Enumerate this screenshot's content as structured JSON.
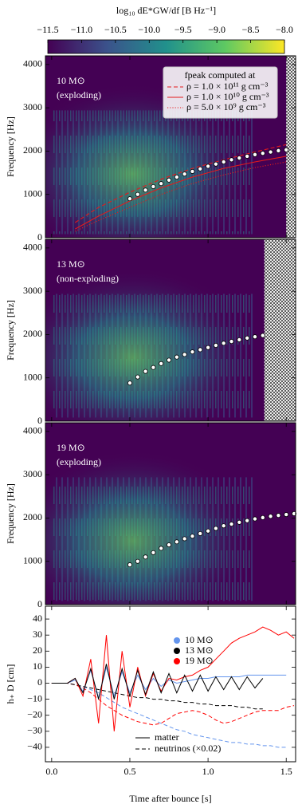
{
  "chart_data": [
    {
      "type": "colorbar",
      "label": "log₁₀ dE*GW/df [B Hz⁻¹]",
      "colormap": "viridis",
      "xlim": [
        -11.5,
        -8.0
      ],
      "xticks": [
        {
          "value": -11.5,
          "label": "−11.5"
        },
        {
          "value": -11.0,
          "label": "−11.0"
        },
        {
          "value": -10.5,
          "label": "−10.5"
        },
        {
          "value": -10.0,
          "label": "−10.0"
        },
        {
          "value": -9.5,
          "label": "−9.5"
        },
        {
          "value": -9.0,
          "label": "−9.0"
        },
        {
          "value": -8.5,
          "label": "−8.5"
        },
        {
          "value": -8.0,
          "label": "−8.0"
        }
      ]
    },
    {
      "type": "spectrogram",
      "annotations": [
        "10 M⊙",
        "(exploding)"
      ],
      "ylabel": "Frequency [Hz]",
      "xlim": [
        -0.04,
        1.56
      ],
      "ylim": [
        0,
        4200
      ],
      "yticks": [
        0,
        1000,
        2000,
        3000,
        4000
      ],
      "hatched_after": 1.5,
      "legend_title": "fpeak computed at",
      "series": [
        {
          "name": "ρ = 1.0 × 10¹¹ g cm⁻³",
          "color": "#e41a1c",
          "linestyle": "dashed",
          "x": [
            0.15,
            0.3,
            0.5,
            0.7,
            0.9,
            1.1,
            1.3,
            1.5
          ],
          "values": [
            350,
            700,
            1050,
            1350,
            1600,
            1800,
            1980,
            2150
          ]
        },
        {
          "name": "ρ = 1.0 × 10¹⁰ g cm⁻³",
          "color": "#e41a1c",
          "linestyle": "solid",
          "x": [
            0.15,
            0.3,
            0.5,
            0.7,
            0.9,
            1.1,
            1.3,
            1.5
          ],
          "values": [
            200,
            500,
            850,
            1150,
            1400,
            1600,
            1750,
            1880
          ]
        },
        {
          "name": "ρ = 5.0 × 10⁹ g cm⁻³",
          "color": "#e41a1c",
          "linestyle": "dotted",
          "x": [
            0.15,
            0.3,
            0.5,
            0.7,
            0.9,
            1.1,
            1.3,
            1.5
          ],
          "values": [
            150,
            400,
            700,
            1000,
            1250,
            1450,
            1620,
            1750
          ]
        }
      ],
      "peaks": {
        "x": [
          0.5,
          0.55,
          0.6,
          0.65,
          0.7,
          0.75,
          0.8,
          0.85,
          0.9,
          0.95,
          1.0,
          1.05,
          1.1,
          1.15,
          1.2,
          1.25,
          1.3,
          1.35,
          1.4,
          1.45,
          1.5
        ],
        "values": [
          900,
          1000,
          1100,
          1180,
          1250,
          1330,
          1400,
          1470,
          1530,
          1590,
          1650,
          1700,
          1750,
          1800,
          1840,
          1880,
          1920,
          1950,
          1980,
          2010,
          2030
        ]
      }
    },
    {
      "type": "spectrogram",
      "annotations": [
        "13 M⊙",
        "(non-exploding)"
      ],
      "ylabel": "Frequency [Hz]",
      "xlim": [
        -0.04,
        1.56
      ],
      "ylim": [
        0,
        4200
      ],
      "yticks": [
        0,
        1000,
        2000,
        3000,
        4000
      ],
      "hatched_after": 1.36,
      "peaks": {
        "x": [
          0.5,
          0.55,
          0.6,
          0.65,
          0.7,
          0.75,
          0.8,
          0.85,
          0.9,
          0.95,
          1.0,
          1.05,
          1.1,
          1.15,
          1.2,
          1.25,
          1.3,
          1.35
        ],
        "values": [
          880,
          1020,
          1150,
          1240,
          1330,
          1410,
          1480,
          1540,
          1600,
          1650,
          1700,
          1750,
          1800,
          1840,
          1880,
          1920,
          1950,
          1980
        ]
      }
    },
    {
      "type": "spectrogram",
      "annotations": [
        "19 M⊙",
        "(exploding)"
      ],
      "ylabel": "Frequency [Hz]",
      "xlim": [
        -0.04,
        1.56
      ],
      "ylim": [
        0,
        4200
      ],
      "yticks": [
        0,
        1000,
        2000,
        3000,
        4000
      ],
      "peaks": {
        "x": [
          0.5,
          0.55,
          0.6,
          0.65,
          0.7,
          0.75,
          0.8,
          0.85,
          0.9,
          0.95,
          1.0,
          1.05,
          1.1,
          1.15,
          1.2,
          1.25,
          1.3,
          1.35,
          1.4,
          1.45,
          1.5,
          1.55
        ],
        "values": [
          920,
          1000,
          1100,
          1200,
          1300,
          1380,
          1450,
          1520,
          1580,
          1640,
          1700,
          1760,
          1820,
          1860,
          1900,
          1940,
          1980,
          2010,
          2040,
          2060,
          2080,
          2100
        ]
      }
    },
    {
      "type": "waveform",
      "xlabel": "Time after bounce [s]",
      "ylabel": "h₊ D [cm]",
      "xlim": [
        -0.04,
        1.56
      ],
      "ylim": [
        -49,
        48
      ],
      "xticks": [
        {
          "value": 0.0,
          "label": "0.0"
        },
        0.5,
        {
          "value": 1.0,
          "label": "1.0"
        },
        1.5
      ],
      "yticks": [
        {
          "value": -40,
          "label": "−40"
        },
        {
          "value": -30,
          "label": "−30"
        },
        {
          "value": -20,
          "label": "−20"
        },
        {
          "value": -10,
          "label": "−10"
        },
        0,
        10,
        20,
        30,
        40
      ],
      "linestyles": [
        {
          "name": "matter",
          "linestyle": "solid"
        },
        {
          "name": "neutrinos (×0.02)",
          "linestyle": "dashed"
        }
      ],
      "models": [
        {
          "name": "10 M⊙",
          "color": "#6495ed",
          "x": [
            0,
            0.05,
            0.1,
            0.15,
            0.2,
            0.25,
            0.3,
            0.35,
            0.4,
            0.45,
            0.5,
            0.55,
            0.6,
            0.65,
            0.7,
            0.75,
            0.8,
            0.85,
            0.9,
            0.95,
            1.0,
            1.05,
            1.1,
            1.15,
            1.2,
            1.25,
            1.3,
            1.35,
            1.4,
            1.45,
            1.5
          ],
          "matter": [
            0,
            0,
            0,
            2,
            -5,
            8,
            -9,
            10,
            -8,
            7,
            -6,
            5,
            -4,
            3,
            -2,
            2,
            0,
            1,
            2,
            3,
            3,
            4,
            4,
            4,
            4,
            5,
            5,
            5,
            5,
            5,
            5
          ],
          "neutrinos": [
            0,
            0,
            0,
            -1,
            -2,
            -4,
            -6,
            -9,
            -12,
            -15,
            -17,
            -19,
            -21,
            -23,
            -25,
            -27,
            -29,
            -30,
            -32,
            -33,
            -34,
            -35,
            -36,
            -37,
            -37,
            -38,
            -38,
            -39,
            -39,
            -40,
            -40
          ]
        },
        {
          "name": "13 M⊙",
          "color": "#000000",
          "x": [
            0,
            0.05,
            0.1,
            0.15,
            0.2,
            0.25,
            0.3,
            0.35,
            0.4,
            0.45,
            0.5,
            0.55,
            0.6,
            0.65,
            0.7,
            0.75,
            0.8,
            0.85,
            0.9,
            0.95,
            1.0,
            1.05,
            1.1,
            1.15,
            1.2,
            1.25,
            1.3,
            1.35
          ],
          "matter": [
            0,
            0,
            0,
            3,
            -6,
            9,
            -10,
            12,
            -10,
            9,
            -8,
            8,
            -7,
            7,
            -6,
            6,
            -6,
            5,
            -5,
            5,
            -5,
            4,
            -4,
            4,
            -4,
            4,
            -3,
            3
          ],
          "neutrinos": [
            0,
            0,
            0,
            -1,
            -2,
            -3,
            -4,
            -5,
            -6,
            -7,
            -8,
            -9,
            -9,
            -10,
            -10,
            -11,
            -11,
            -12,
            -12,
            -13,
            -13,
            -14,
            -14,
            -14,
            -15,
            -15,
            -16,
            -16
          ]
        },
        {
          "name": "19 M⊙",
          "color": "#ff0000",
          "x": [
            0,
            0.05,
            0.1,
            0.15,
            0.2,
            0.25,
            0.3,
            0.35,
            0.4,
            0.45,
            0.5,
            0.55,
            0.6,
            0.65,
            0.7,
            0.75,
            0.8,
            0.85,
            0.9,
            0.95,
            1.0,
            1.05,
            1.1,
            1.15,
            1.2,
            1.25,
            1.3,
            1.35,
            1.4,
            1.45,
            1.5,
            1.55
          ],
          "matter": [
            0,
            0,
            0,
            3,
            -8,
            15,
            -25,
            30,
            -30,
            20,
            -15,
            10,
            -8,
            6,
            -5,
            3,
            2,
            4,
            5,
            8,
            10,
            15,
            20,
            25,
            28,
            30,
            32,
            35,
            33,
            30,
            32,
            28
          ],
          "neutrinos": [
            0,
            0,
            0,
            -1,
            -3,
            -6,
            -10,
            -14,
            -17,
            -20,
            -22,
            -24,
            -25,
            -26,
            -25,
            -22,
            -19,
            -18,
            -17,
            -18,
            -20,
            -23,
            -25,
            -24,
            -22,
            -20,
            -18,
            -17,
            -17,
            -17,
            -15,
            -14
          ]
        }
      ]
    }
  ]
}
